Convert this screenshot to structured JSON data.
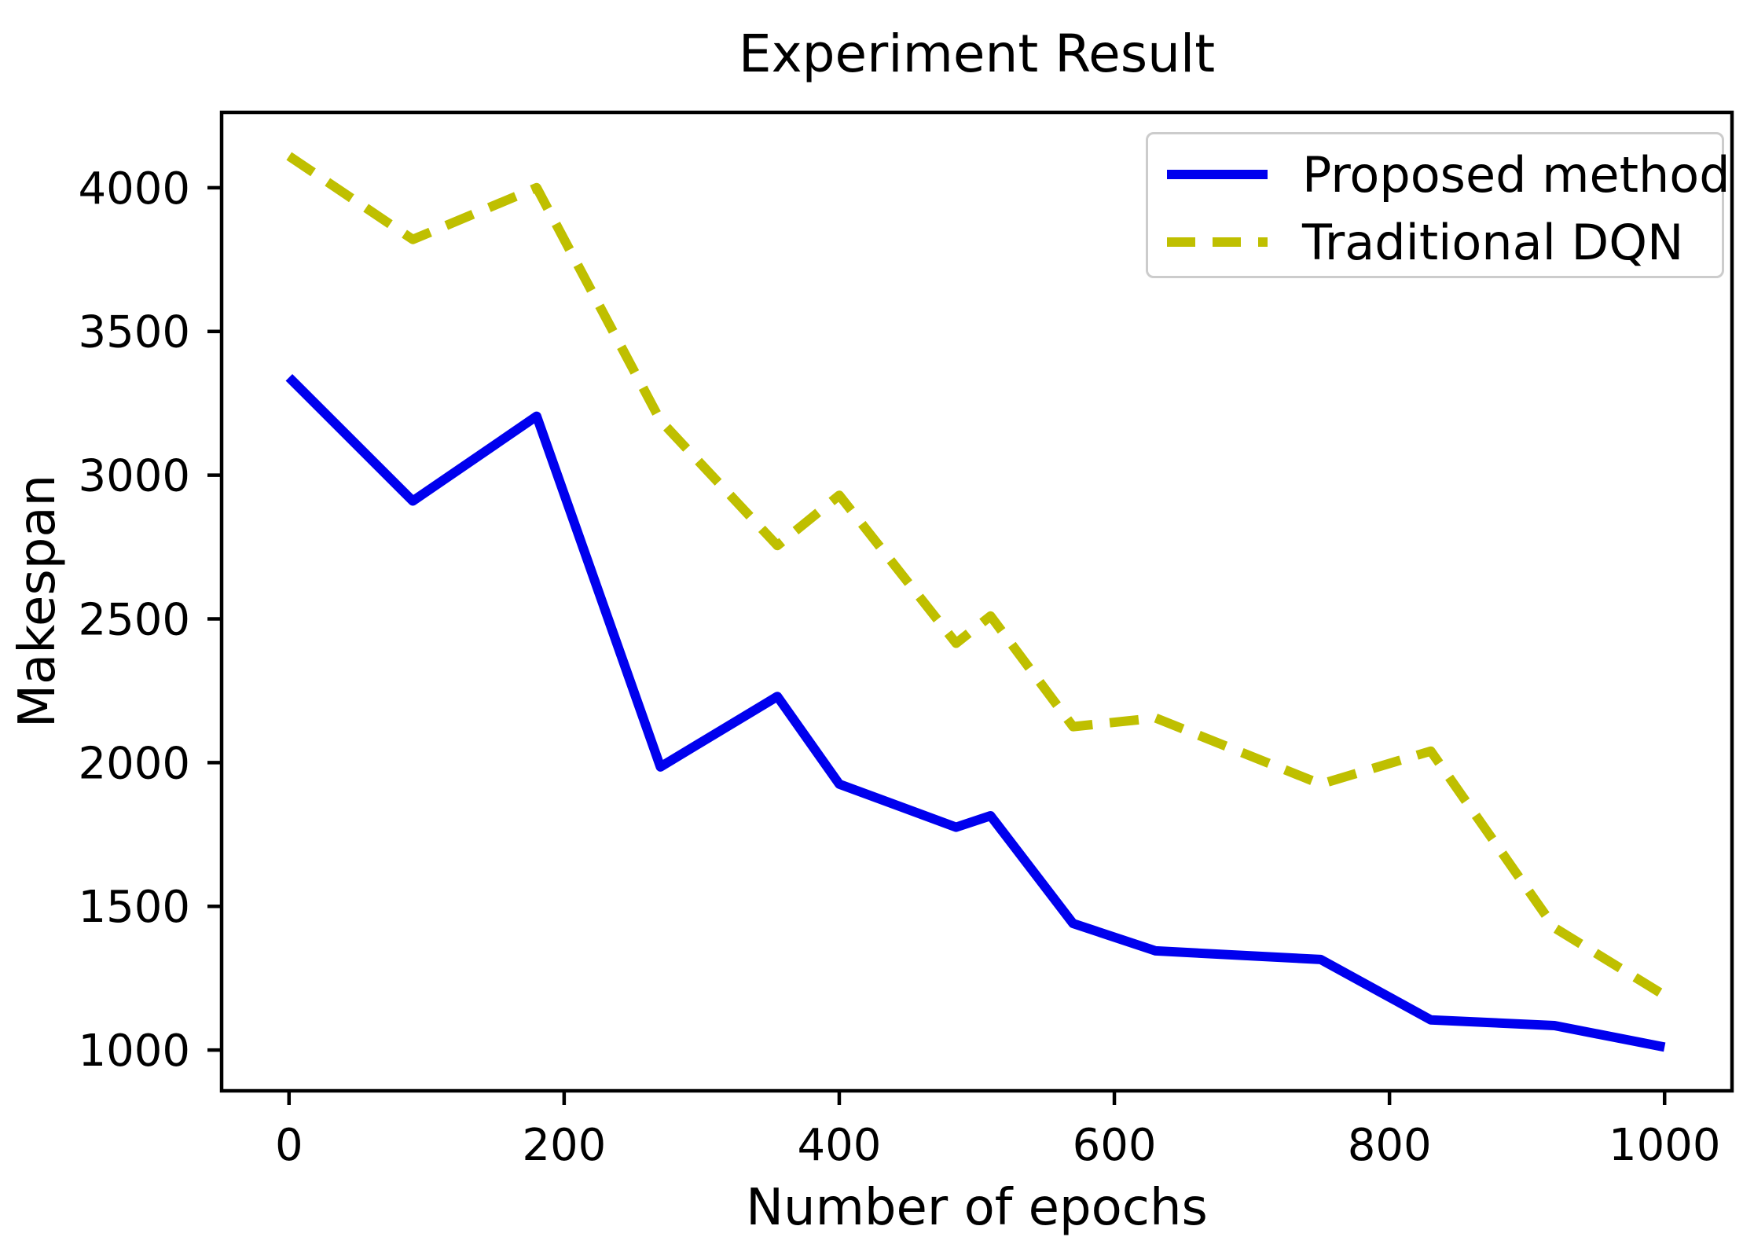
{
  "figure": {
    "title": "Experiment Result",
    "x_axis": {
      "label": "Number of epochs"
    },
    "y_axis": {
      "label": "Makespan"
    },
    "colors": {
      "axis": "#000000",
      "legend_border": "#cccccc",
      "proposed_method": "#0000ee",
      "traditional_dqn": "#bfbf00",
      "background": "#ffffff"
    }
  },
  "legend": {
    "entries": [
      {
        "label": "Proposed method",
        "color": "#0000ee",
        "style": "solid"
      },
      {
        "label": "Traditional DQN",
        "color": "#bfbf00",
        "style": "dashed"
      }
    ],
    "position": "upper right"
  },
  "chart_data": {
    "type": "line",
    "title": "Experiment Result",
    "xlabel": "Number of epochs",
    "ylabel": "Makespan",
    "x": [
      0,
      90,
      180,
      270,
      355,
      400,
      485,
      510,
      570,
      630,
      750,
      830,
      920,
      1000
    ],
    "series": [
      {
        "name": "Proposed method",
        "color": "#0000ee",
        "line_style": "solid",
        "values": [
          3340,
          2910,
          3205,
          1985,
          2230,
          1925,
          1775,
          1815,
          1440,
          1345,
          1315,
          1105,
          1085,
          1010
        ]
      },
      {
        "name": "Traditional DQN",
        "color": "#bfbf00",
        "line_style": "dashed",
        "values": [
          4110,
          3820,
          4000,
          3190,
          2755,
          2930,
          2415,
          2510,
          2125,
          2155,
          1925,
          2040,
          1425,
          1190
        ]
      }
    ],
    "x_ticks": [
      0,
      200,
      400,
      600,
      800,
      1000
    ],
    "y_ticks": [
      1000,
      1500,
      2000,
      2500,
      3000,
      3500,
      4000
    ],
    "xlim": [
      -49,
      1049
    ],
    "ylim": [
      858,
      4262
    ],
    "grid": false,
    "legend_position": "upper right"
  }
}
